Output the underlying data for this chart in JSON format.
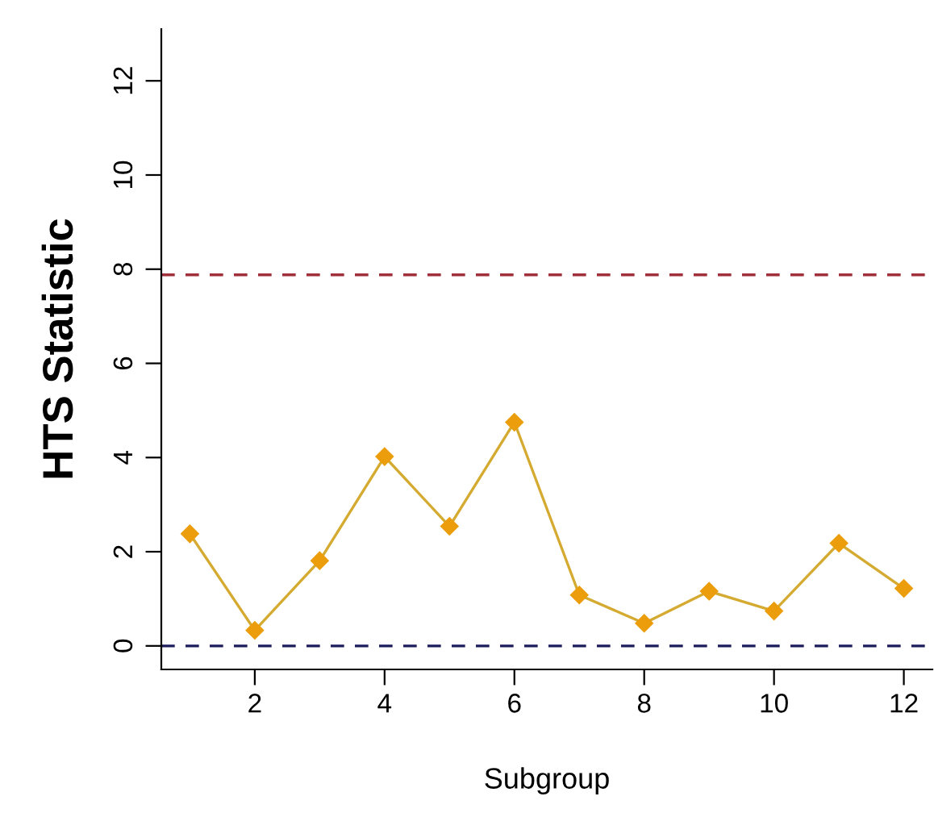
{
  "chart_data": {
    "type": "line",
    "xlabel": "Subgroup",
    "ylabel": "HTS Statistic",
    "x": [
      1,
      2,
      3,
      4,
      5,
      6,
      7,
      8,
      9,
      10,
      11,
      12
    ],
    "series": [
      {
        "color": "#eb9d0c",
        "values": [
          2.38,
          0.33,
          1.81,
          4.02,
          2.54,
          4.75,
          1.08,
          0.48,
          1.16,
          0.74,
          2.18,
          1.22
        ]
      }
    ],
    "xlim": [
      0.56,
      12.44
    ],
    "ylim": [
      -0.5,
      13.1
    ],
    "xticks": [
      2,
      4,
      6,
      8,
      10,
      12
    ],
    "yticks": [
      0,
      2,
      4,
      6,
      8,
      10,
      12
    ],
    "ref_lines": [
      {
        "axis": "y",
        "value": 7.88,
        "color": "#a0303a",
        "line_style": "dashed"
      },
      {
        "axis": "y",
        "value": 0,
        "color": "#1c1c5c",
        "line_style": "dashed"
      }
    ],
    "marker": "diamond",
    "grid": false,
    "legend": false
  }
}
